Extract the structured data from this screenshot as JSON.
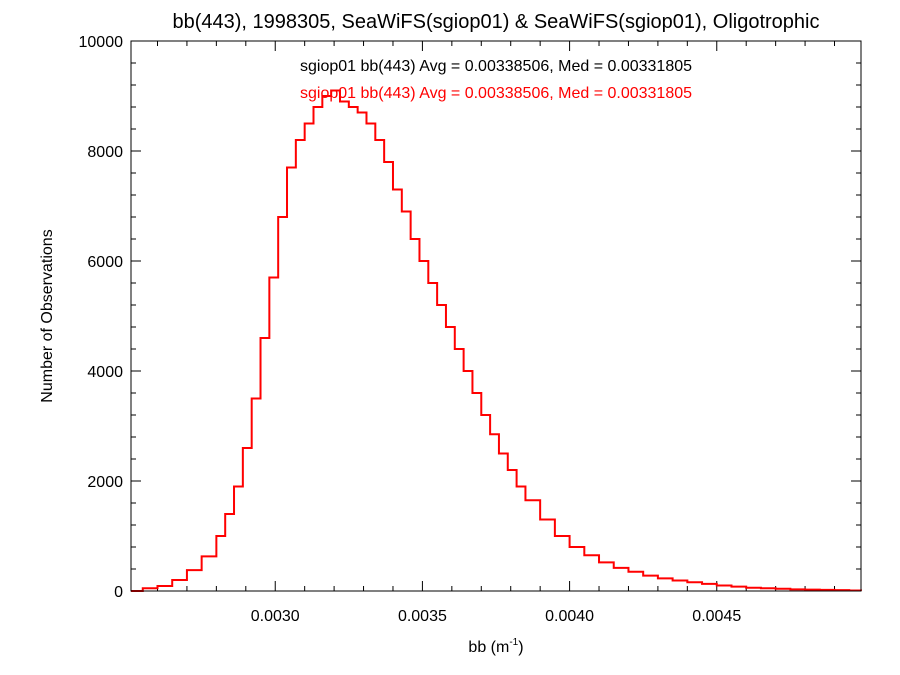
{
  "chart_data": {
    "type": "line",
    "title": "bb(443), 1998305, SeaWiFS(sgiop01) & SeaWiFS(sgiop01), Oligotrophic",
    "xlabel_main": "bb (m",
    "xlabel_sup": "-1",
    "xlabel_close": ")",
    "ylabel": "Number of Observations",
    "xlim": [
      0.00251,
      0.00499
    ],
    "ylim": [
      0,
      10000
    ],
    "x_ticks": [
      0.003,
      0.0035,
      0.004,
      0.0045
    ],
    "x_tick_labels": [
      "0.0030",
      "0.0035",
      "0.0040",
      "0.0045"
    ],
    "y_ticks": [
      0,
      2000,
      4000,
      6000,
      8000,
      10000
    ],
    "y_tick_labels": [
      "0",
      "2000",
      "4000",
      "6000",
      "8000",
      "10000"
    ],
    "grid": false,
    "legend": [
      {
        "text": "sgiop01 bb(443) Avg = 0.00338506, Med = 0.00331805",
        "color": "#000000"
      },
      {
        "text": "sgiop01 bb(443) Avg = 0.00338506, Med = 0.00331805",
        "color": "#ff0000"
      }
    ],
    "series": [
      {
        "color": "#ff0000",
        "style": "step",
        "points": [
          [
            0.00251,
            0
          ],
          [
            0.00255,
            50
          ],
          [
            0.0026,
            90
          ],
          [
            0.00265,
            200
          ],
          [
            0.0027,
            380
          ],
          [
            0.00275,
            630
          ],
          [
            0.0028,
            1000
          ],
          [
            0.00283,
            1400
          ],
          [
            0.00286,
            1900
          ],
          [
            0.00289,
            2600
          ],
          [
            0.00292,
            3500
          ],
          [
            0.00295,
            4600
          ],
          [
            0.00298,
            5700
          ],
          [
            0.00301,
            6800
          ],
          [
            0.00304,
            7700
          ],
          [
            0.00307,
            8200
          ],
          [
            0.0031,
            8500
          ],
          [
            0.00313,
            8800
          ],
          [
            0.00316,
            9000
          ],
          [
            0.00319,
            9100
          ],
          [
            0.00322,
            8900
          ],
          [
            0.00325,
            8800
          ],
          [
            0.00328,
            8700
          ],
          [
            0.00331,
            8500
          ],
          [
            0.00334,
            8200
          ],
          [
            0.00337,
            7800
          ],
          [
            0.0034,
            7300
          ],
          [
            0.00343,
            6900
          ],
          [
            0.00346,
            6400
          ],
          [
            0.00349,
            6000
          ],
          [
            0.00352,
            5600
          ],
          [
            0.00355,
            5200
          ],
          [
            0.00358,
            4800
          ],
          [
            0.00361,
            4400
          ],
          [
            0.00364,
            4000
          ],
          [
            0.00367,
            3600
          ],
          [
            0.0037,
            3200
          ],
          [
            0.00373,
            2850
          ],
          [
            0.00376,
            2500
          ],
          [
            0.00379,
            2200
          ],
          [
            0.00382,
            1900
          ],
          [
            0.00385,
            1650
          ],
          [
            0.0039,
            1300
          ],
          [
            0.00395,
            1000
          ],
          [
            0.004,
            800
          ],
          [
            0.00405,
            650
          ],
          [
            0.0041,
            520
          ],
          [
            0.00415,
            420
          ],
          [
            0.0042,
            350
          ],
          [
            0.00425,
            280
          ],
          [
            0.0043,
            230
          ],
          [
            0.00435,
            190
          ],
          [
            0.0044,
            160
          ],
          [
            0.00445,
            130
          ],
          [
            0.0045,
            100
          ],
          [
            0.00455,
            80
          ],
          [
            0.0046,
            60
          ],
          [
            0.00465,
            50
          ],
          [
            0.0047,
            40
          ],
          [
            0.00475,
            30
          ],
          [
            0.0048,
            25
          ],
          [
            0.00485,
            20
          ],
          [
            0.0049,
            15
          ],
          [
            0.00495,
            10
          ],
          [
            0.00499,
            5
          ]
        ]
      }
    ]
  }
}
